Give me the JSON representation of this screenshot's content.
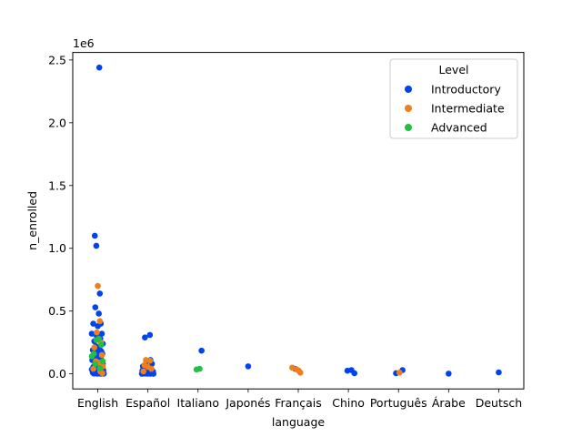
{
  "chart_data": {
    "type": "scatter",
    "xlabel": "language",
    "ylabel": "n_enrolled",
    "y_offset_text": "1e6",
    "categories": [
      "English",
      "Español",
      "Italiano",
      "Japonés",
      "Français",
      "Chino",
      "Português",
      "Árabe",
      "Deutsch"
    ],
    "ylim": [
      -120000,
      2560000
    ],
    "yticks": [
      0,
      500000,
      1000000,
      1500000,
      2000000,
      2500000
    ],
    "ytick_labels": [
      "0.0",
      "0.5",
      "1.0",
      "1.5",
      "2.0",
      "2.5"
    ],
    "legend": {
      "title": "Level",
      "placement": "top-right"
    },
    "series": [
      {
        "name": "Introductory",
        "color": "#0044ee",
        "points": [
          [
            0.03,
            2440000
          ],
          [
            -0.06,
            1100000
          ],
          [
            -0.03,
            1020000
          ],
          [
            0.04,
            640000
          ],
          [
            -0.05,
            530000
          ],
          [
            0.02,
            480000
          ],
          [
            -0.09,
            400000
          ],
          [
            0.06,
            400000
          ],
          [
            0.0,
            380000
          ],
          [
            -0.12,
            320000
          ],
          [
            0.08,
            320000
          ],
          [
            -0.02,
            300000
          ],
          [
            0.05,
            280000
          ],
          [
            -0.07,
            260000
          ],
          [
            0.1,
            240000
          ],
          [
            -0.04,
            220000
          ],
          [
            0.03,
            200000
          ],
          [
            -0.1,
            190000
          ],
          [
            0.07,
            180000
          ],
          [
            -0.01,
            170000
          ],
          [
            0.09,
            160000
          ],
          [
            -0.08,
            150000
          ],
          [
            0.02,
            140000
          ],
          [
            -0.05,
            130000
          ],
          [
            0.06,
            120000
          ],
          [
            -0.11,
            110000
          ],
          [
            0.04,
            100000
          ],
          [
            -0.03,
            90000
          ],
          [
            0.1,
            80000
          ],
          [
            -0.06,
            70000
          ],
          [
            0.01,
            60000
          ],
          [
            -0.09,
            55000
          ],
          [
            0.08,
            50000
          ],
          [
            -0.02,
            45000
          ],
          [
            0.05,
            40000
          ],
          [
            -0.12,
            35000
          ],
          [
            0.11,
            30000
          ],
          [
            -0.04,
            25000
          ],
          [
            0.03,
            20000
          ],
          [
            -0.07,
            15000
          ],
          [
            0.07,
            12000
          ],
          [
            -0.1,
            10000
          ],
          [
            0.0,
            8000
          ],
          [
            0.09,
            6000
          ],
          [
            -0.05,
            5000
          ],
          [
            0.04,
            4000
          ],
          [
            -0.08,
            3000
          ],
          [
            0.12,
            2000
          ],
          [
            -0.01,
            1500
          ],
          [
            0.06,
            1000
          ],
          [
            0.94,
            290000
          ],
          [
            1.04,
            310000
          ],
          [
            1.05,
            110000
          ],
          [
            0.97,
            100000
          ],
          [
            1.08,
            80000
          ],
          [
            0.9,
            60000
          ],
          [
            1.0,
            50000
          ],
          [
            0.93,
            45000
          ],
          [
            1.06,
            40000
          ],
          [
            0.96,
            35000
          ],
          [
            1.02,
            30000
          ],
          [
            0.89,
            25000
          ],
          [
            1.1,
            20000
          ],
          [
            0.95,
            15000
          ],
          [
            1.03,
            12000
          ],
          [
            0.91,
            10000
          ],
          [
            1.07,
            8000
          ],
          [
            0.98,
            6000
          ],
          [
            1.09,
            5000
          ],
          [
            0.92,
            4000
          ],
          [
            1.01,
            3000
          ],
          [
            0.94,
            2000
          ],
          [
            1.05,
            1500
          ],
          [
            0.99,
            1000
          ],
          [
            1.11,
            500
          ],
          [
            0.88,
            500
          ],
          [
            1.04,
            18000
          ],
          [
            0.97,
            22000
          ],
          [
            1.06,
            28000
          ],
          [
            0.9,
            14000
          ],
          [
            2.07,
            185000
          ],
          [
            3.0,
            60000
          ],
          [
            3.94,
            40000
          ],
          [
            4.98,
            25000
          ],
          [
            5.06,
            30000
          ],
          [
            5.12,
            5000
          ],
          [
            5.95,
            5000
          ],
          [
            6.08,
            30000
          ],
          [
            7.0,
            2000
          ],
          [
            8.0,
            12000
          ]
        ]
      },
      {
        "name": "Intermediate",
        "color": "#f07f1a",
        "points": [
          [
            0.0,
            700000
          ],
          [
            0.04,
            420000
          ],
          [
            -0.02,
            330000
          ],
          [
            0.06,
            250000
          ],
          [
            -0.07,
            210000
          ],
          [
            0.08,
            150000
          ],
          [
            -0.04,
            100000
          ],
          [
            0.02,
            90000
          ],
          [
            0.1,
            60000
          ],
          [
            -0.09,
            40000
          ],
          [
            0.05,
            20000
          ],
          [
            0.09,
            5000
          ],
          [
            0.96,
            110000
          ],
          [
            1.04,
            105000
          ],
          [
            0.93,
            70000
          ],
          [
            1.0,
            55000
          ],
          [
            1.07,
            40000
          ],
          [
            0.91,
            20000
          ],
          [
            3.88,
            50000
          ],
          [
            3.97,
            35000
          ],
          [
            4.04,
            10000
          ],
          [
            4.01,
            25000
          ],
          [
            6.02,
            10000
          ]
        ]
      },
      {
        "name": "Advanced",
        "color": "#20c040",
        "points": [
          [
            0.02,
            280000
          ],
          [
            -0.03,
            270000
          ],
          [
            0.07,
            230000
          ],
          [
            -0.08,
            160000
          ],
          [
            -0.12,
            140000
          ],
          [
            0.1,
            100000
          ],
          [
            -0.05,
            80000
          ],
          [
            0.04,
            45000
          ],
          [
            1.97,
            35000
          ],
          [
            2.03,
            40000
          ]
        ]
      }
    ]
  }
}
